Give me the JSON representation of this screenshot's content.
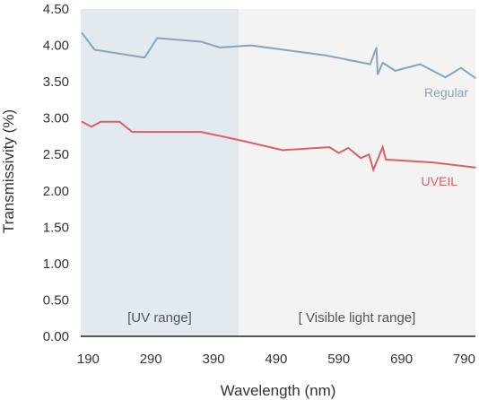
{
  "chart_data": {
    "type": "line",
    "xlabel": "Wavelength (nm)",
    "ylabel": "Transmissivity (%)",
    "xlim": [
      178,
      808
    ],
    "ylim": [
      0,
      4.5
    ],
    "x_ticks": [
      190,
      290,
      390,
      490,
      590,
      690,
      790
    ],
    "x_tick_labels": [
      "190",
      "290",
      "390",
      "490",
      "590",
      "690",
      "790"
    ],
    "y_ticks": [
      0,
      0.5,
      1.0,
      1.5,
      2.0,
      2.5,
      3.0,
      3.5,
      4.0,
      4.5
    ],
    "y_tick_labels": [
      "0.00",
      "0.50",
      "1.00",
      "1.50",
      "2.00",
      "2.50",
      "3.00",
      "3.50",
      "4.00",
      "4.50"
    ],
    "regions": [
      {
        "label": "[UV range]",
        "x_range": [
          178,
          430
        ],
        "color": "#e2e9ef"
      },
      {
        "label": "[ Visible light range]",
        "x_range": [
          430,
          808
        ],
        "color": "#f3f3f3"
      }
    ],
    "series": [
      {
        "name": "Regular",
        "color": "#8aa4bb",
        "x": [
          180,
          200,
          280,
          300,
          370,
          400,
          450,
          570,
          640,
          650,
          652,
          660,
          680,
          720,
          760,
          785,
          808
        ],
        "y": [
          4.17,
          3.94,
          3.83,
          4.1,
          4.05,
          3.97,
          4.0,
          3.86,
          3.74,
          3.97,
          3.6,
          3.76,
          3.65,
          3.74,
          3.56,
          3.69,
          3.55
        ]
      },
      {
        "name": "UVEIL",
        "color": "#dc5f68",
        "x": [
          180,
          195,
          210,
          240,
          260,
          370,
          430,
          500,
          575,
          590,
          605,
          625,
          638,
          645,
          660,
          665,
          740,
          808
        ],
        "y": [
          2.95,
          2.88,
          2.95,
          2.95,
          2.81,
          2.81,
          2.7,
          2.56,
          2.6,
          2.52,
          2.59,
          2.45,
          2.5,
          2.29,
          2.6,
          2.43,
          2.39,
          2.32
        ]
      }
    ]
  }
}
